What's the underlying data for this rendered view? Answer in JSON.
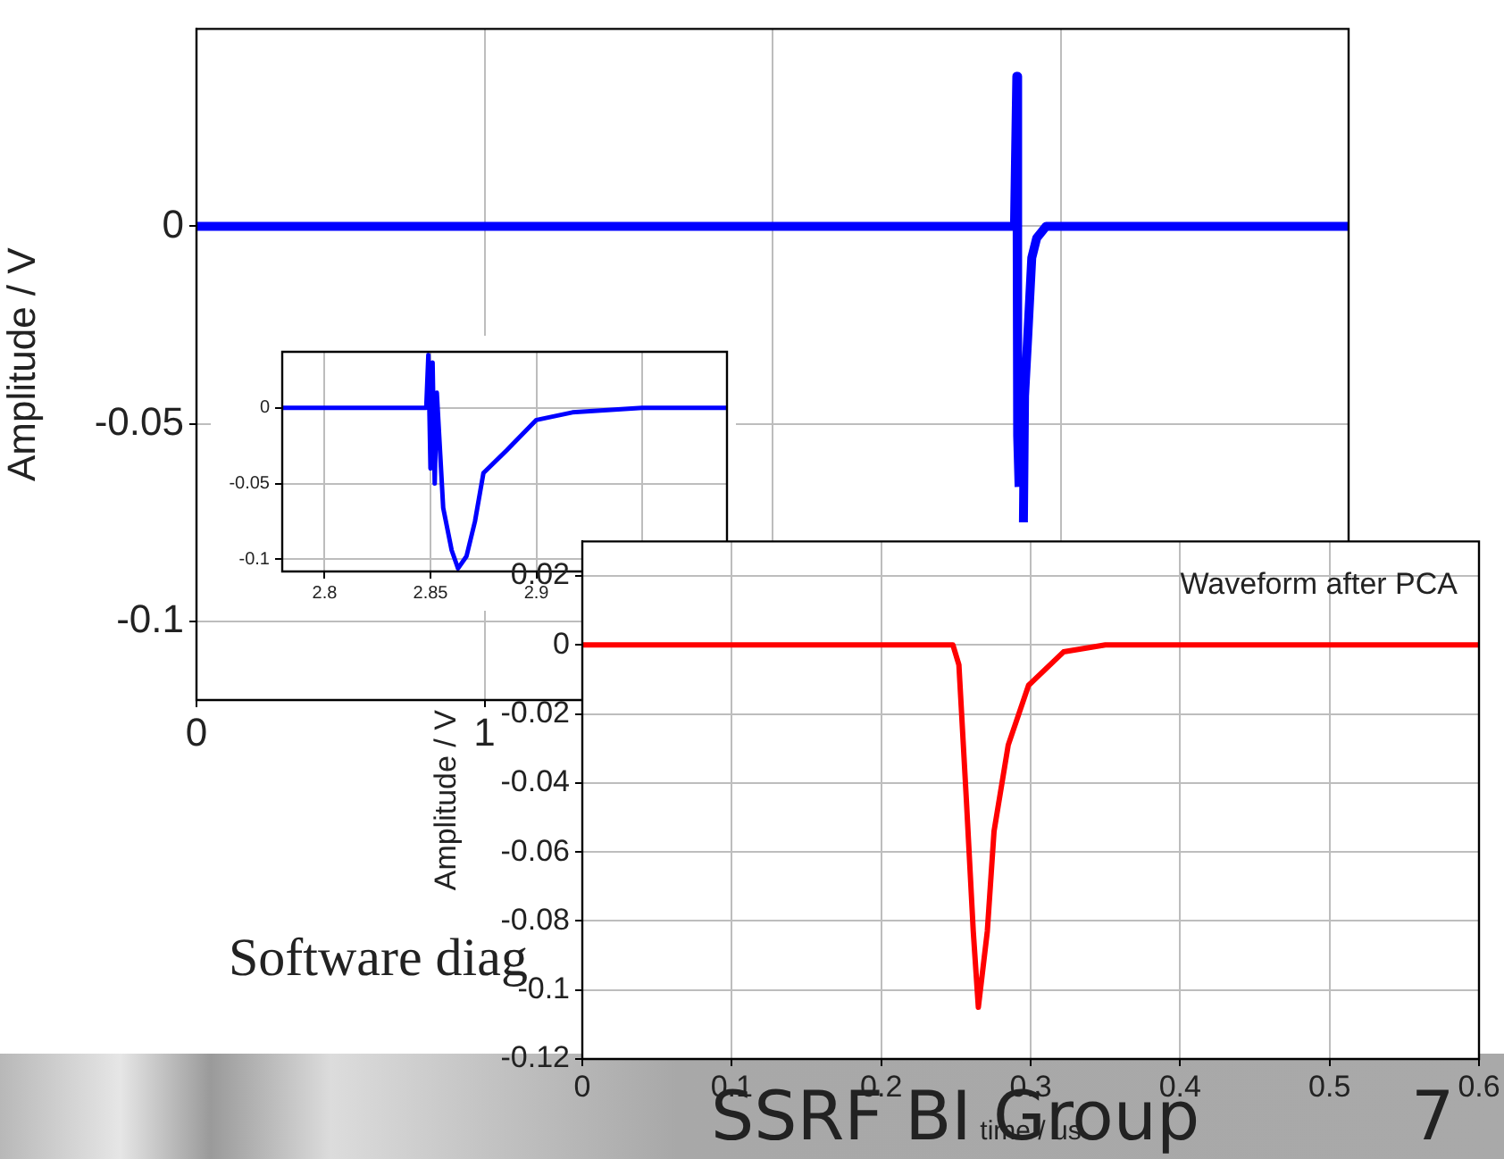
{
  "chart_data": [
    {
      "type": "line",
      "ylabel": "Amplitude / V",
      "x": [
        0,
        2.84,
        2.848,
        2.851,
        2.856,
        2.86,
        2.863,
        2.867,
        2.871,
        2.875,
        2.886,
        2.9,
        2.917,
        2.95,
        4
      ],
      "values": [
        0,
        0,
        0.038,
        -0.053,
        -0.066,
        null,
        null,
        null,
        -0.075,
        -0.043,
        -0.028,
        -0.008,
        -0.003,
        0,
        0
      ],
      "color": "#0000ff",
      "marker": "none",
      "xlim": [
        0,
        4
      ],
      "xticks": [
        0,
        1,
        {
          "value": 2,
          "label": null
        },
        {
          "value": 3,
          "label": null
        },
        {
          "value": 4,
          "label": null
        }
      ],
      "ylim": [
        -0.12,
        0.05
      ],
      "yticks": [
        -0.1,
        -0.05,
        0
      ],
      "grid": true,
      "annotations": [
        "Software diag",
        "SSRF BI Group",
        "7"
      ]
    },
    {
      "type": "line",
      "x": [
        2.78,
        2.848,
        2.849,
        2.85,
        2.851,
        2.852,
        2.853,
        2.856,
        2.86,
        2.863,
        2.867,
        2.871,
        2.875,
        2.886,
        2.9,
        2.917,
        2.95,
        2.99
      ],
      "values": [
        0,
        0,
        0.035,
        -0.04,
        0.03,
        -0.05,
        0.01,
        -0.066,
        -0.094,
        -0.106,
        -0.098,
        -0.075,
        -0.043,
        -0.028,
        -0.008,
        -0.003,
        0,
        0
      ],
      "color": "#0000ff",
      "marker": "none",
      "xlim": [
        2.78,
        2.99
      ],
      "xticks": [
        2.8,
        2.85,
        2.9,
        {
          "value": 2.95,
          "label": null
        }
      ],
      "ylim": [
        -0.108,
        0.037
      ],
      "yticks": [
        -0.1,
        -0.05,
        0
      ],
      "grid": true
    },
    {
      "type": "line",
      "xlabel": "time / us",
      "ylabel": "Amplitude / V",
      "x": [
        0,
        0.245,
        0.248,
        0.252,
        0.257,
        0.2616,
        0.265,
        0.271,
        0.2755,
        0.285,
        0.2986,
        0.322,
        0.35,
        0.6
      ],
      "values": [
        0,
        0,
        0,
        -0.0058,
        -0.045,
        -0.083,
        -0.105,
        -0.083,
        -0.054,
        -0.029,
        -0.0117,
        -0.002,
        0,
        0
      ],
      "color": "#ff0000",
      "marker": "none",
      "xlim": [
        0,
        0.6
      ],
      "xticks": [
        0,
        0.1,
        0.2,
        0.3,
        0.4,
        0.5,
        0.6
      ],
      "ylim": [
        -0.12,
        0.03
      ],
      "yticks": [
        -0.12,
        -0.1,
        -0.08,
        -0.06,
        -0.04,
        -0.02,
        0,
        0.02
      ],
      "grid": true,
      "annotations": [
        "Waveform after PCA"
      ]
    }
  ]
}
